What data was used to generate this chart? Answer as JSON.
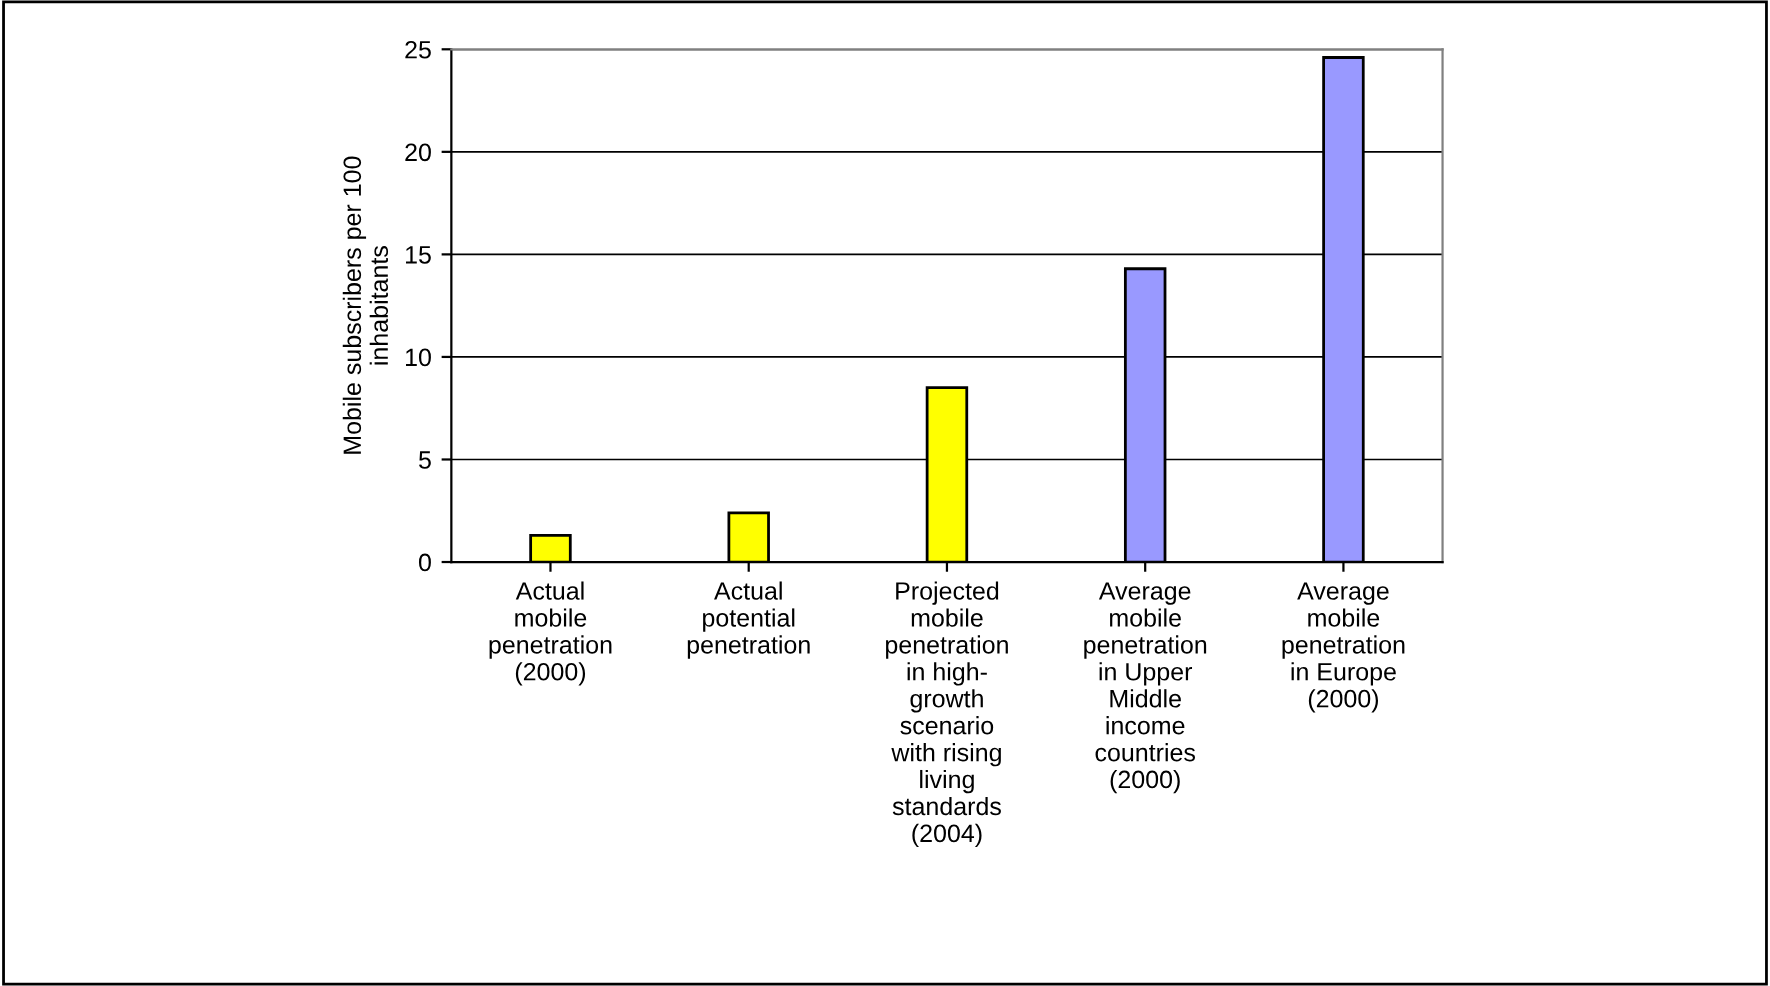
{
  "chart_data": {
    "type": "bar",
    "ylabel": "Mobile subscribers per 100\ninhabitants",
    "categories": [
      "Actual\nmobile\npenetration\n(2000)",
      "Actual\npotential\npenetration",
      "Projected\nmobile\npenetration\nin high-\ngrowth\nscenario\nwith rising\nliving\nstandards\n(2004)",
      "Average\nmobile\npenetration\nin Upper\nMiddle\nincome\ncountries\n(2000)",
      "Average\nmobile\npenetration\nin Europe\n(2000)"
    ],
    "values": [
      1.3,
      2.4,
      8.5,
      14.3,
      24.6
    ],
    "colors": [
      "#ffff00",
      "#ffff00",
      "#ffff00",
      "#9999ff",
      "#9999ff"
    ],
    "ylim": [
      0,
      25
    ],
    "yticks": [
      0,
      5,
      10,
      15,
      20,
      25
    ],
    "grid": "y"
  }
}
